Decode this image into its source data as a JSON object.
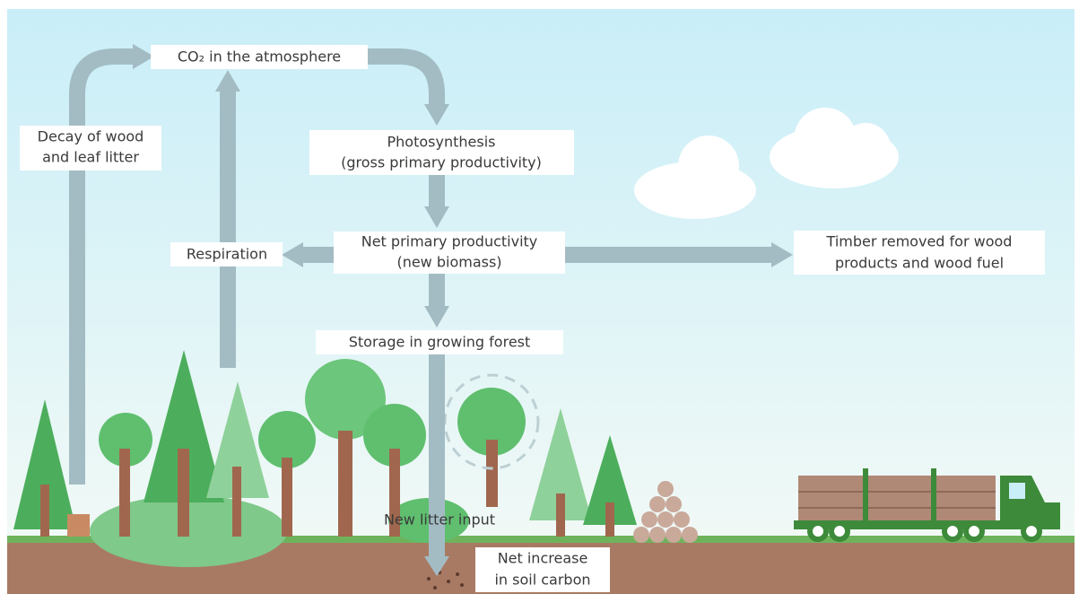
{
  "labels": {
    "co2": "CO₂ in the atmosphere",
    "decay": [
      "Decay of wood",
      "and leaf litter"
    ],
    "photosynthesis": [
      "Photosynthesis",
      "(gross primary productivity)"
    ],
    "npp": [
      "Net primary productivity",
      "(new biomass)"
    ],
    "respiration": "Respiration",
    "timber": [
      "Timber removed for wood",
      "products and wood fuel"
    ],
    "storage": "Storage in growing forest",
    "litter": "New litter input",
    "soil": [
      "Net increase",
      "in soil carbon"
    ]
  }
}
